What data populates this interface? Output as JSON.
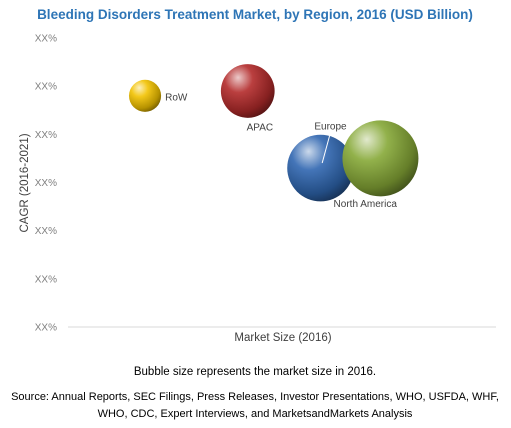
{
  "chart_data": {
    "type": "scatter",
    "title": "Bleeding Disorders Treatment Market, by Region, 2016 (USD Billion)",
    "xlabel": "Market Size (2016)",
    "ylabel": "CAGR (2016-2021)",
    "y_tick_labels": [
      "XX%",
      "XX%",
      "XX%",
      "XX%",
      "XX%",
      "XX%",
      "XX%"
    ],
    "bubble_note": "Bubble size represents the market size in 2016.",
    "source": [
      "Source: Annual Reports, SEC Filings, Press Releases, Investor Presentations, WHO, USFDA, WHF,",
      "WHO, CDC, Expert Interviews, and MarketsandMarkets Analysis"
    ],
    "x_range": [
      0,
      100
    ],
    "y_range": [
      0,
      6
    ],
    "grid": false,
    "series": [
      {
        "label": "RoW",
        "x": 18,
        "y": 4.8,
        "size": 1.0,
        "color": "#f2c200"
      },
      {
        "label": "APAC",
        "x": 42,
        "y": 4.9,
        "size": 2.8,
        "color": "#b22a2a"
      },
      {
        "label": "Europe",
        "x": 59,
        "y": 3.3,
        "size": 4.3,
        "color": "#2f66b0"
      },
      {
        "label": "North America",
        "x": 73,
        "y": 3.5,
        "size": 5.6,
        "color": "#86a837"
      }
    ]
  }
}
